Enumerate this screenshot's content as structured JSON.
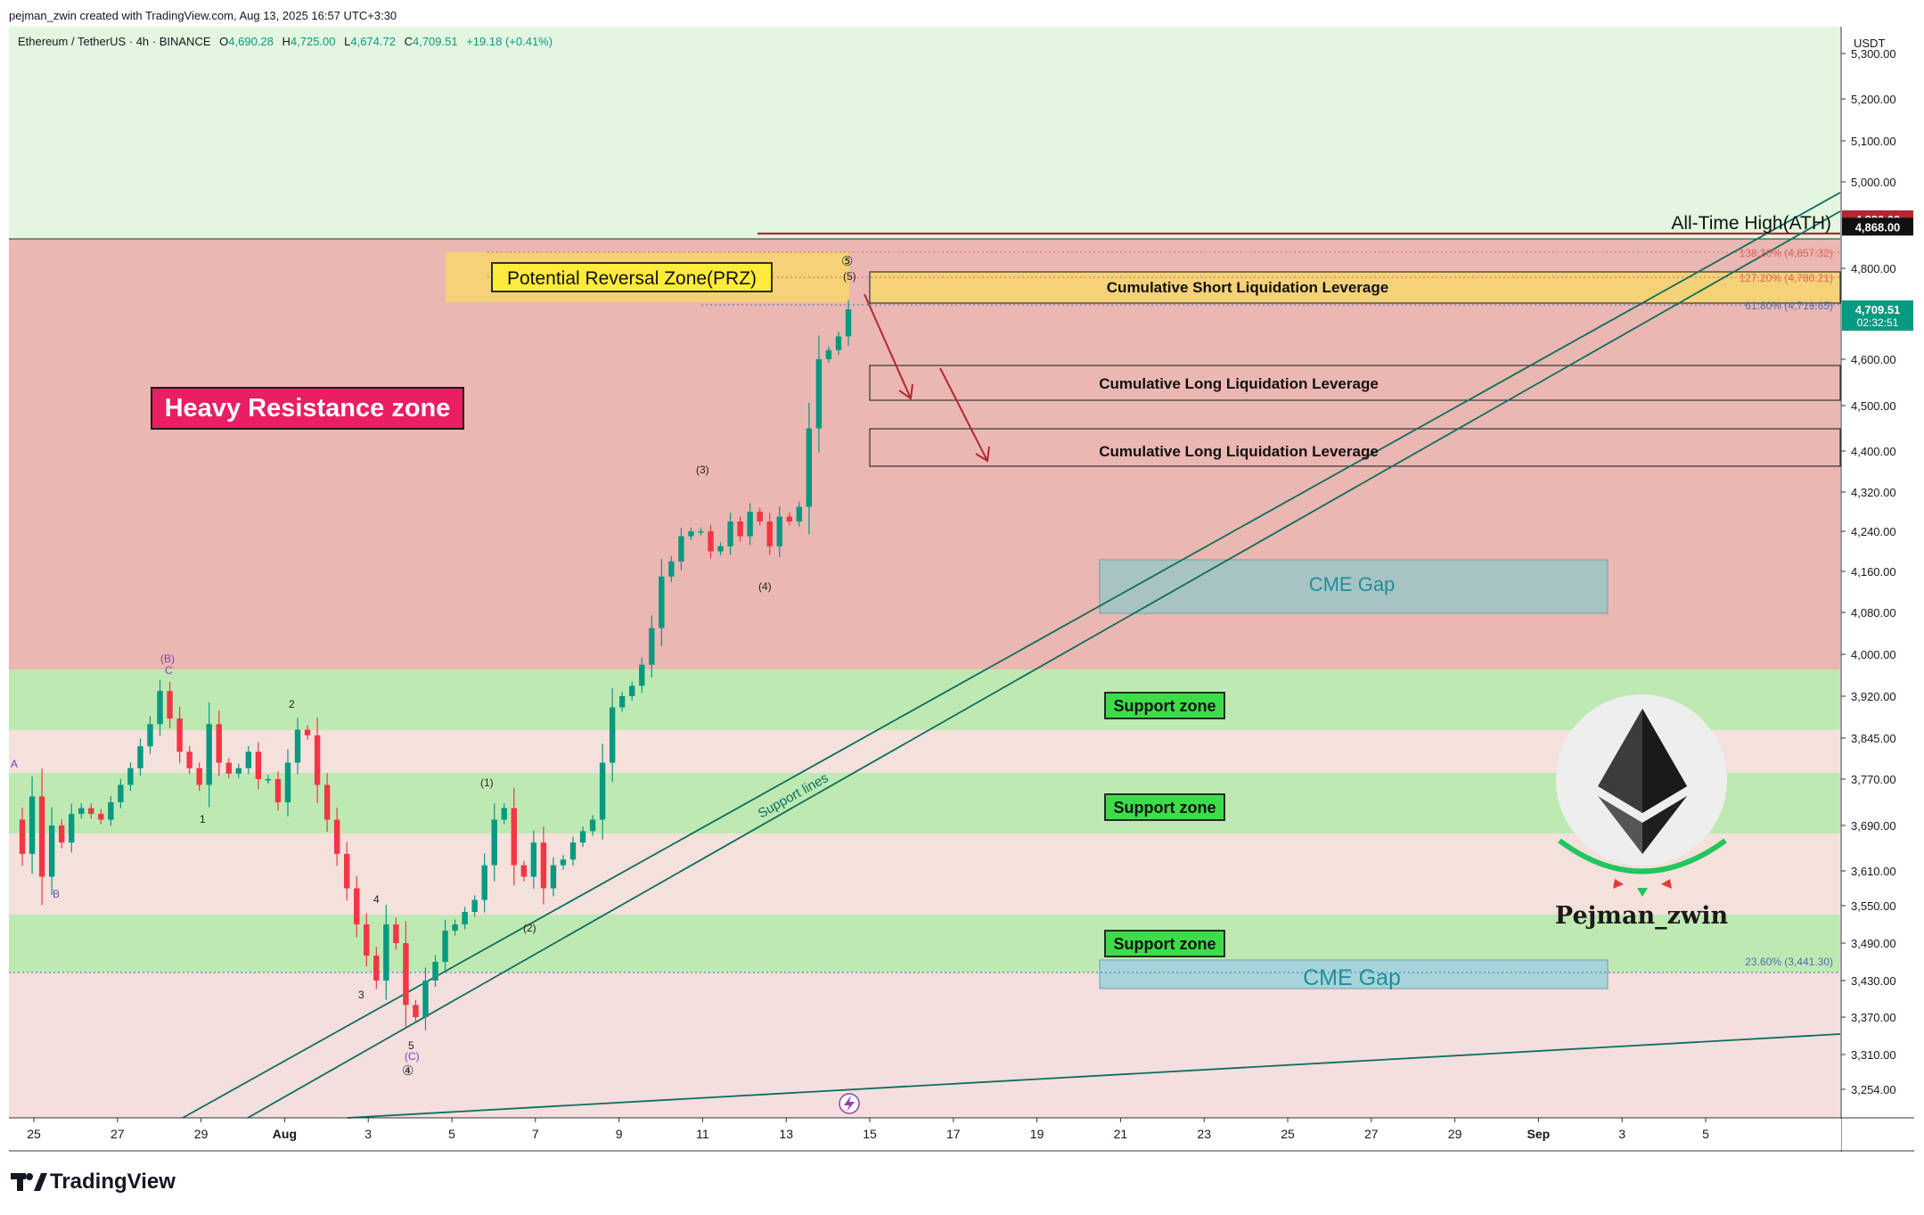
{
  "header": {
    "credit": "pejman_zwin created with TradingView.com, Aug 13, 2025 16:57 UTC+3:30",
    "symbol": "Ethereum / TetherUS · 4h · BINANCE",
    "open_label": "O",
    "open_value": "4,690.28",
    "high_label": "H",
    "high_value": "4,725.00",
    "low_label": "L",
    "low_value": "4,674.72",
    "close_label": "C",
    "close_value": "4,709.51",
    "change": "+19.18 (+0.41%)"
  },
  "footer": {
    "brand": "TradingView"
  },
  "watermark": {
    "author": "Pejman_zwin"
  },
  "colors": {
    "bullish": "#089981",
    "bearish": "#f23645",
    "resistance_bg": "#ebb7b2",
    "support_bg": "#bfe9b3",
    "top_bg": "#e3f6df",
    "annotation_box": "#f5d278",
    "heavy_label_bg": "#e91e63"
  },
  "chart_data": {
    "type": "candlestick",
    "symbol": "Ethereum / TetherUS",
    "interval": "4h",
    "exchange": "BINANCE",
    "currency": "USDT",
    "ylim": [
      3190,
      5390
    ],
    "x_ticks": [
      "25",
      "27",
      "29",
      "Aug",
      "3",
      "5",
      "7",
      "9",
      "11",
      "13",
      "15",
      "17",
      "19",
      "21",
      "23",
      "25",
      "27",
      "29",
      "Sep",
      "3",
      "5"
    ],
    "y_ticks": [
      5300,
      5200,
      5100,
      5000,
      4800,
      4600,
      4500,
      4400,
      4320,
      4240,
      4160,
      4080,
      4000,
      3920,
      3845,
      3770,
      3690,
      3610,
      3550,
      3490,
      3430,
      3370,
      3310,
      3254
    ],
    "y_tick_labels": [
      "5,300.00",
      "5,200.00",
      "5,100.00",
      "5,000.00",
      "4,800.00",
      "4,600.00",
      "4,500.00",
      "4,400.00",
      "4,320.00",
      "4,240.00",
      "4,160.00",
      "4,080.00",
      "4,000.00",
      "3,920.00",
      "3,845.00",
      "3,770.00",
      "3,690.00",
      "3,610.00",
      "3,550.00",
      "3,490.00",
      "3,430.00",
      "3,370.00",
      "3,310.00",
      "3,254.00"
    ],
    "price_badges": [
      {
        "label": "4,880.00",
        "value": 4880,
        "color": "#b22833"
      },
      {
        "label": "4,868.00",
        "value": 4868,
        "color": "#111111"
      },
      {
        "label": "4,709.51",
        "value": 4709.51,
        "color": "#089981",
        "sub": "02:32:51"
      }
    ],
    "ohlc": {
      "open": 4690.28,
      "high": 4725.0,
      "low": 4674.72,
      "close": 4709.51
    },
    "price_path": [
      3700,
      3640,
      3740,
      3600,
      3690,
      3660,
      3710,
      3720,
      3710,
      3700,
      3730,
      3760,
      3790,
      3830,
      3870,
      3930,
      3880,
      3820,
      3790,
      3760,
      3870,
      3800,
      3780,
      3790,
      3820,
      3770,
      3770,
      3730,
      3800,
      3860,
      3850,
      3760,
      3700,
      3640,
      3580,
      3520,
      3470,
      3430,
      3520,
      3490,
      3390,
      3370,
      3430,
      3460,
      3510,
      3520,
      3540,
      3560,
      3620,
      3700,
      3720,
      3620,
      3600,
      3660,
      3580,
      3620,
      3630,
      3660,
      3680,
      3700,
      3800,
      3900,
      3920,
      3940,
      3980,
      4050,
      4150,
      4180,
      4230,
      4240,
      4240,
      4200,
      4210,
      4260,
      4230,
      4280,
      4260,
      4210,
      4270,
      4260,
      4290,
      4450,
      4600,
      4620,
      4650,
      4709.51
    ],
    "zones": [
      {
        "name": "Heavy Resistance zone",
        "from": 3980,
        "to": 4865
      },
      {
        "name": "Support zone",
        "from": 3860,
        "to": 3975
      },
      {
        "name": "Support zone",
        "from": 3675,
        "to": 3780
      },
      {
        "name": "Support zone",
        "from": 3430,
        "to": 3540
      }
    ],
    "fib_levels": [
      {
        "label": "138.20% (4,857.32)",
        "value": 4857.32
      },
      {
        "label": "127.20% (4,780.21)",
        "value": 4780.21
      },
      {
        "label": "61.80% (4,719.65)",
        "value": 4719.65
      },
      {
        "label": "23.60% (3,441.30)",
        "value": 3441.3
      }
    ],
    "wave_labels": [
      "A",
      "B",
      "(B)",
      "C",
      "1",
      "2",
      "3",
      "4",
      "5",
      "(C)",
      "④",
      "(1)",
      "(2)",
      "(3)",
      "(4)",
      "(5)",
      "⑤"
    ],
    "annotations": {
      "heavy_resistance": "Heavy Resistance zone",
      "prz": "Potential Reversal Zone(PRZ)",
      "ath": "All-Time High(ATH)",
      "short_liq": "Cumulative Short Liquidation Leverage",
      "long_liq_1": "Cumulative Long Liquidation Leverage",
      "long_liq_2": "Cumulative Long Liquidation Leverage",
      "cme_gap_1": "CME Gap",
      "cme_gap_2": "CME Gap",
      "support_1": "Support zone",
      "support_2": "Support zone",
      "support_3": "Support zone",
      "support_lines": "Support lines"
    }
  }
}
